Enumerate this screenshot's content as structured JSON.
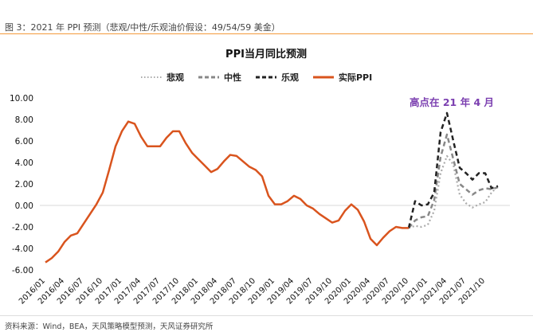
{
  "caption": "图 3：2021 年 PPI 预测（悲观/中性/乐观油价假设：49/54/59 美金）",
  "source": "资料来源：Wind，BEA，天风策略模型预测，天风证券研究所",
  "chart_data": {
    "type": "line",
    "title": "PPI当月同比预测",
    "annotation": "高点在 21 年 4 月",
    "ylim": [
      -6,
      10
    ],
    "yticks": [
      "10.00",
      "8.00",
      "6.00",
      "4.00",
      "2.00",
      "0.00",
      "-2.00",
      "-4.00",
      "-6.00"
    ],
    "xticks": [
      "2016/01",
      "2016/04",
      "2016/07",
      "2016/10",
      "2017/01",
      "2017/04",
      "2017/07",
      "2017/10",
      "2018/01",
      "2018/04",
      "2018/07",
      "2018/10",
      "2019/01",
      "2019/04",
      "2019/07",
      "2019/10",
      "2020/01",
      "2020/04",
      "2020/07",
      "2020/10",
      "2021/01",
      "2021/04",
      "2021/07",
      "2021/10"
    ],
    "x_start": "2016/01",
    "series": [
      {
        "name": "悲观",
        "color": "#aaaaaa",
        "style": "dotted",
        "start_month": 57,
        "values": [
          -2.1,
          -1.9,
          -2.0,
          -1.8,
          -0.5,
          3.0,
          4.6,
          3.8,
          1.0,
          0.2,
          -0.2,
          0.1,
          0.3,
          1.2,
          1.8
        ]
      },
      {
        "name": "中性",
        "color": "#888888",
        "style": "dashed",
        "start_month": 57,
        "values": [
          -2.1,
          -1.4,
          -1.1,
          -1.0,
          0.5,
          4.5,
          6.6,
          4.3,
          2.0,
          1.5,
          1.0,
          1.4,
          1.6,
          1.5,
          1.7
        ]
      },
      {
        "name": "乐观",
        "color": "#222222",
        "style": "dashed",
        "start_month": 57,
        "values": [
          -2.1,
          0.4,
          0.0,
          0.1,
          1.2,
          6.8,
          8.6,
          6.0,
          3.5,
          3.0,
          2.4,
          3.0,
          3.0,
          1.6,
          1.8
        ]
      },
      {
        "name": "实际PPI",
        "color": "#d9541e",
        "style": "solid",
        "start_month": 0,
        "values": [
          -5.3,
          -4.9,
          -4.3,
          -3.4,
          -2.8,
          -2.6,
          -1.7,
          -0.8,
          0.1,
          1.2,
          3.3,
          5.5,
          6.9,
          7.8,
          7.6,
          6.4,
          5.5,
          5.5,
          5.5,
          6.3,
          6.9,
          6.9,
          5.8,
          4.9,
          4.3,
          3.7,
          3.1,
          3.4,
          4.1,
          4.7,
          4.6,
          4.1,
          3.6,
          3.3,
          2.7,
          0.9,
          0.1,
          0.1,
          0.4,
          0.9,
          0.6,
          0.0,
          -0.3,
          -0.8,
          -1.2,
          -1.6,
          -1.4,
          -0.5,
          0.1,
          -0.4,
          -1.5,
          -3.1,
          -3.7,
          -3.0,
          -2.4,
          -2.0,
          -2.1,
          -2.1
        ]
      }
    ]
  }
}
